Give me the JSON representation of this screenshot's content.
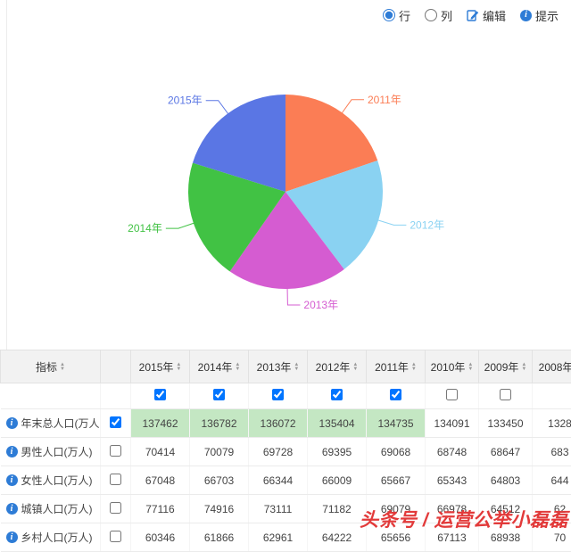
{
  "toolbar": {
    "row_radio": "行",
    "col_radio": "列",
    "edit": "编辑",
    "tip": "提示"
  },
  "chart_data": {
    "type": "pie",
    "title": "",
    "categories": [
      "2011年",
      "2012年",
      "2013年",
      "2014年",
      "2015年"
    ],
    "values": [
      134735,
      135404,
      136072,
      136782,
      137462
    ],
    "colors": [
      "#FB7D55",
      "#8AD2F2",
      "#D55CD1",
      "#41C244",
      "#5A76E4"
    ],
    "start_angle": "top",
    "direction": "clockwise",
    "labels": "outside",
    "legend_position": "none"
  },
  "table": {
    "header": {
      "indicator": "指标",
      "years": [
        "2015年",
        "2014年",
        "2013年",
        "2012年",
        "2011年",
        "2010年",
        "2009年",
        "2008年"
      ]
    },
    "column_checkboxes": [
      true,
      true,
      true,
      true,
      true,
      false,
      false
    ],
    "rows": [
      {
        "label": "年末总人口(万人)",
        "checked": true,
        "values": [
          "137462",
          "136782",
          "136072",
          "135404",
          "134735",
          "134091",
          "133450",
          "1328"
        ]
      },
      {
        "label": "男性人口(万人)",
        "checked": false,
        "values": [
          "70414",
          "70079",
          "69728",
          "69395",
          "69068",
          "68748",
          "68647",
          "683"
        ]
      },
      {
        "label": "女性人口(万人)",
        "checked": false,
        "values": [
          "67048",
          "66703",
          "66344",
          "66009",
          "65667",
          "65343",
          "64803",
          "644"
        ]
      },
      {
        "label": "城镇人口(万人)",
        "checked": false,
        "values": [
          "77116",
          "74916",
          "73111",
          "71182",
          "69079",
          "66978",
          "64512",
          "62"
        ]
      },
      {
        "label": "乡村人口(万人)",
        "checked": false,
        "values": [
          "60346",
          "61866",
          "62961",
          "64222",
          "65656",
          "67113",
          "68938",
          "70"
        ]
      }
    ]
  },
  "watermark": "头条号 / 运营公举小磊磊",
  "colors": {
    "info_blue": "#2E7CD6",
    "highlight_green": "#C4E7C3",
    "watermark_red": "#E23A3A",
    "table_header_bg": "#F2F2F2"
  }
}
